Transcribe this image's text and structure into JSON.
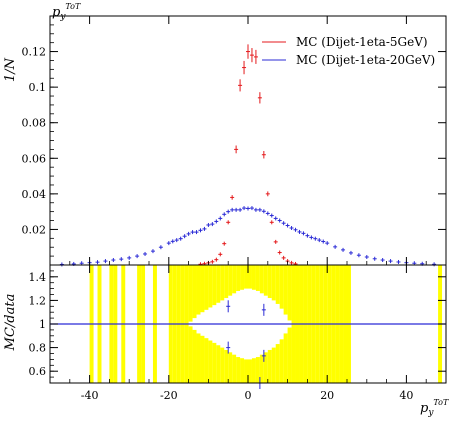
{
  "chart_data": [
    {
      "type": "scatter",
      "title": "p_y^{ToT}",
      "title_main": "p",
      "title_sub": "y",
      "title_sup": "ToT",
      "xlabel": "p_y^{ToT}",
      "ylabel": "1/N",
      "xlim": [
        -50,
        50
      ],
      "ylim": [
        0,
        0.14
      ],
      "yticks": [
        0.02,
        0.04,
        0.06,
        0.08,
        0.1,
        0.12
      ],
      "ytick_labels": [
        "0.02",
        "0.04",
        "0.06",
        "0.08",
        "0.1",
        "0.12"
      ],
      "legend_position": "top-right",
      "series": [
        {
          "name": "MC (Dijet-1eta-5GeV)",
          "color": "#e41a1c",
          "points": [
            [
              -12,
              0.0004
            ],
            [
              -11,
              0.0007
            ],
            [
              -10,
              0.0012
            ],
            [
              -9,
              0.0018
            ],
            [
              -8,
              0.003
            ],
            [
              -7,
              0.006
            ],
            [
              -6,
              0.012
            ],
            [
              -5,
              0.024
            ],
            [
              -4,
              0.038
            ],
            [
              -3,
              0.065
            ],
            [
              -2,
              0.101
            ],
            [
              -1,
              0.111
            ],
            [
              0,
              0.12
            ],
            [
              1,
              0.118
            ],
            [
              2,
              0.117
            ],
            [
              3,
              0.094
            ],
            [
              4,
              0.062
            ],
            [
              5,
              0.04
            ],
            [
              6,
              0.024
            ],
            [
              7,
              0.013
            ],
            [
              8,
              0.007
            ],
            [
              9,
              0.004
            ],
            [
              10,
              0.0022
            ],
            [
              11,
              0.0012
            ],
            [
              12,
              0.0006
            ]
          ]
        },
        {
          "name": "MC (Dijet-1eta-20GeV)",
          "color": "#2b2bd6",
          "points": [
            [
              -47,
              0.0003
            ],
            [
              -44,
              0.0006
            ],
            [
              -42,
              0.001
            ],
            [
              -40,
              0.0013
            ],
            [
              -38,
              0.0016
            ],
            [
              -36,
              0.0022
            ],
            [
              -34,
              0.0028
            ],
            [
              -32,
              0.0033
            ],
            [
              -30,
              0.004
            ],
            [
              -28,
              0.005
            ],
            [
              -26,
              0.0062
            ],
            [
              -24,
              0.0078
            ],
            [
              -22,
              0.01
            ],
            [
              -20,
              0.0123
            ],
            [
              -19,
              0.0133
            ],
            [
              -18,
              0.014
            ],
            [
              -17,
              0.0148
            ],
            [
              -16,
              0.0162
            ],
            [
              -15,
              0.0175
            ],
            [
              -14,
              0.0185
            ],
            [
              -13,
              0.0185
            ],
            [
              -12,
              0.0195
            ],
            [
              -11,
              0.0203
            ],
            [
              -10,
              0.0225
            ],
            [
              -9,
              0.023
            ],
            [
              -8,
              0.0245
            ],
            [
              -7,
              0.0262
            ],
            [
              -6,
              0.0285
            ],
            [
              -5,
              0.03
            ],
            [
              -4,
              0.031
            ],
            [
              -3,
              0.031
            ],
            [
              -2,
              0.031
            ],
            [
              -1,
              0.032
            ],
            [
              0,
              0.0318
            ],
            [
              1,
              0.032
            ],
            [
              2,
              0.031
            ],
            [
              3,
              0.031
            ],
            [
              4,
              0.0302
            ],
            [
              5,
              0.029
            ],
            [
              6,
              0.0278
            ],
            [
              7,
              0.0262
            ],
            [
              8,
              0.025
            ],
            [
              9,
              0.0235
            ],
            [
              10,
              0.0222
            ],
            [
              11,
              0.0208
            ],
            [
              12,
              0.0198
            ],
            [
              13,
              0.0186
            ],
            [
              14,
              0.0178
            ],
            [
              15,
              0.0165
            ],
            [
              16,
              0.0155
            ],
            [
              17,
              0.0148
            ],
            [
              18,
              0.014
            ],
            [
              19,
              0.0132
            ],
            [
              20,
              0.0123
            ],
            [
              22,
              0.0102
            ],
            [
              24,
              0.0085
            ],
            [
              26,
              0.0068
            ],
            [
              28,
              0.0055
            ],
            [
              30,
              0.0045
            ],
            [
              32,
              0.0035
            ],
            [
              34,
              0.0028
            ],
            [
              36,
              0.0022
            ],
            [
              38,
              0.0017
            ],
            [
              40,
              0.0013
            ],
            [
              42,
              0.001
            ],
            [
              44,
              0.0007
            ],
            [
              47,
              0.0004
            ]
          ]
        }
      ]
    },
    {
      "type": "scatter",
      "ylabel": "MC/data",
      "xlabel": "p_y^{ToT}",
      "xlabel_main": "p",
      "xlabel_sub": "y",
      "xlabel_sup": "ToT",
      "xlim": [
        -50,
        50
      ],
      "ylim": [
        0.5,
        1.5
      ],
      "xticks": [
        -40,
        -20,
        0,
        20,
        40
      ],
      "xtick_labels": [
        "-40",
        "-20",
        "0",
        "20",
        "40"
      ],
      "yticks": [
        0.6,
        0.8,
        1.0,
        1.2,
        1.4
      ],
      "ytick_labels": [
        "0.6",
        "0.8",
        "1",
        "1.2",
        "1.4"
      ],
      "reference_line": 1,
      "band_color": "#ffff00",
      "band": [
        [
          -39.5,
          0.0
        ],
        [
          -37.5,
          0.0
        ],
        [
          -34.5,
          0.0
        ],
        [
          -33.5,
          0.0
        ],
        [
          -31.5,
          0.0
        ],
        [
          -27.5,
          0.0
        ],
        [
          -26.5,
          0.0
        ],
        [
          -23.5,
          0.0
        ],
        [
          -19.5,
          0.0
        ],
        [
          -18.5,
          0.0
        ],
        [
          -17.5,
          0.0
        ],
        [
          -16.5,
          0.0
        ],
        [
          -15.5,
          0.0
        ],
        [
          -14.5,
          0.02
        ],
        [
          -13.5,
          0.05
        ],
        [
          -12.5,
          0.08
        ],
        [
          -11.5,
          0.1
        ],
        [
          -10.5,
          0.12
        ],
        [
          -9.5,
          0.14
        ],
        [
          -8.5,
          0.16
        ],
        [
          -7.5,
          0.18
        ],
        [
          -6.5,
          0.2
        ],
        [
          -5.5,
          0.22
        ],
        [
          -4.5,
          0.24
        ],
        [
          -3.5,
          0.26
        ],
        [
          -2.5,
          0.28
        ],
        [
          -1.5,
          0.29
        ],
        [
          -0.5,
          0.3
        ],
        [
          0.5,
          0.3
        ],
        [
          1.5,
          0.29
        ],
        [
          2.5,
          0.28
        ],
        [
          3.5,
          0.26
        ],
        [
          4.5,
          0.24
        ],
        [
          5.5,
          0.22
        ],
        [
          6.5,
          0.2
        ],
        [
          7.5,
          0.17
        ],
        [
          8.5,
          0.13
        ],
        [
          9.5,
          0.08
        ],
        [
          10.5,
          0.03
        ],
        [
          11.5,
          0.0
        ],
        [
          12.5,
          0.0
        ],
        [
          13.5,
          0.0
        ],
        [
          14.5,
          0.0
        ],
        [
          15.5,
          0.0
        ],
        [
          16.5,
          0.0
        ],
        [
          17.5,
          0.0
        ],
        [
          18.5,
          0.0
        ],
        [
          19.5,
          0.0
        ],
        [
          20.5,
          0.0
        ],
        [
          21.5,
          0.0
        ],
        [
          22.5,
          0.0
        ],
        [
          23.5,
          0.0
        ],
        [
          24.5,
          0.0
        ],
        [
          25.5,
          0.0
        ],
        [
          48.5,
          0.0
        ]
      ],
      "series": [
        {
          "name": "MC (Dijet-1eta-5GeV)",
          "color": "#e41a1c",
          "points": []
        },
        {
          "name": "MC (Dijet-1eta-20GeV)",
          "color": "#2b2bd6",
          "points": [
            [
              -5,
              1.15
            ],
            [
              -5,
              0.8
            ],
            [
              4,
              1.12
            ],
            [
              4,
              0.73
            ],
            [
              3,
              0.5
            ]
          ]
        }
      ]
    }
  ]
}
